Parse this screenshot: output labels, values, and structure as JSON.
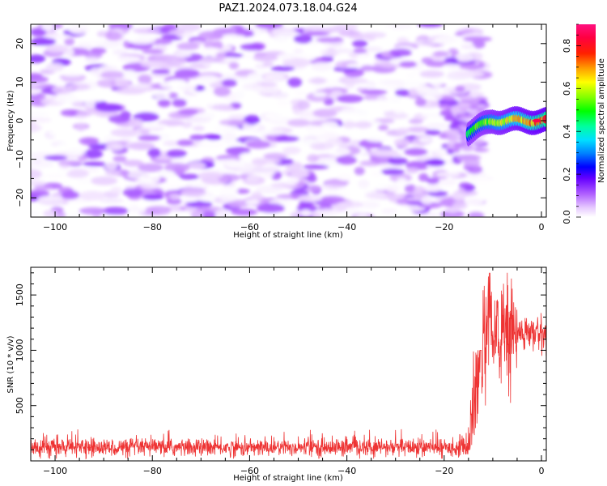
{
  "title": "PAZ1.2024.073.18.04.G24",
  "chart_data": [
    {
      "type": "heatmap",
      "xlabel": "Height of straight line (km)",
      "ylabel": "Frequency (Hz)",
      "xlim": [
        -105,
        1
      ],
      "ylim": [
        -25,
        25
      ],
      "xticks": [
        -100,
        -80,
        -60,
        -40,
        -20,
        0
      ],
      "yticks": [
        -20,
        -10,
        0,
        10,
        20
      ],
      "colorbar": {
        "label": "Normalized spectral amplitude",
        "range": [
          0.0,
          0.9
        ],
        "ticks": [
          0.0,
          0.2,
          0.4,
          0.6,
          0.8
        ],
        "colormap": "gist_ncar-like (white → purple → blue → cyan → green → yellow → red → pink)"
      },
      "features": [
        {
          "x_range": [
            -105,
            -15
          ],
          "frequency_range": [
            -25,
            25
          ],
          "amplitude_range": [
            0.0,
            0.15
          ]
        },
        {
          "x_range": [
            -15,
            1
          ],
          "frequency_center": 0,
          "amplitude_range": [
            0.1,
            0.85
          ]
        }
      ]
    },
    {
      "type": "line",
      "xlabel": "Height of straight line (km)",
      "ylabel": "SNR (10 * v/v)",
      "xlim": [
        -105,
        1
      ],
      "ylim": [
        0,
        1750
      ],
      "xticks": [
        -100,
        -80,
        -60,
        -40,
        -20,
        0
      ],
      "yticks": [
        500,
        1000,
        1500
      ],
      "color": "#ee3333",
      "segments": [
        {
          "x_range": [
            -105,
            -15
          ],
          "mean": 120,
          "range": [
            20,
            320
          ]
        },
        {
          "x_range": [
            -15,
            -12
          ],
          "mean": 500,
          "range": [
            100,
            1000
          ]
        },
        {
          "x_range": [
            -12,
            -5
          ],
          "mean": 1150,
          "range": [
            400,
            1700
          ]
        },
        {
          "x_range": [
            -5,
            1
          ],
          "mean": 1150,
          "range": [
            950,
            1400
          ]
        }
      ]
    }
  ]
}
